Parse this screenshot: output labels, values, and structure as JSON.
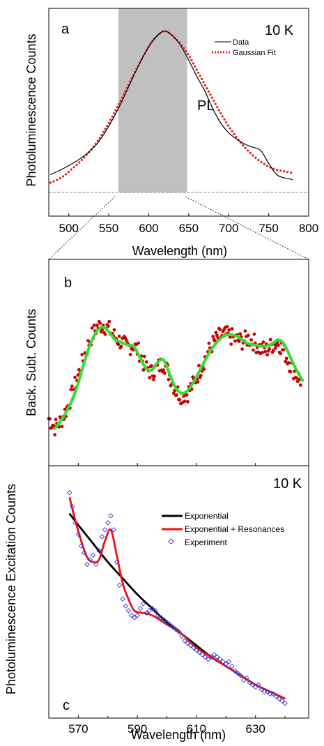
{
  "chart_data": [
    {
      "panel": "a",
      "type": "line",
      "ylabel": "Photoluminescence Counts",
      "xlabel": "Wavelength (nm)",
      "temperature_label": "10 K",
      "panel_label": "a",
      "peak_label": "PL",
      "xlim": [
        475,
        800
      ],
      "ylim": [
        0,
        1.05
      ],
      "xticks": [
        500,
        550,
        600,
        650,
        700,
        750,
        800
      ],
      "shaded_region": [
        562,
        648
      ],
      "baseline_y": 0.0,
      "legend": {
        "position": "top-right",
        "entries": [
          "Data",
          "Gaussian Fit"
        ]
      },
      "series": [
        {
          "name": "Data",
          "color": "#000000",
          "style": "solid",
          "x": [
            477,
            490,
            505,
            520,
            535,
            550,
            565,
            580,
            595,
            605,
            615,
            620,
            625,
            632,
            640,
            650,
            660,
            670,
            680,
            690,
            700,
            710,
            720,
            730,
            740,
            750,
            760,
            770,
            780
          ],
          "y": [
            0.11,
            0.14,
            0.18,
            0.23,
            0.3,
            0.41,
            0.55,
            0.71,
            0.86,
            0.94,
            0.99,
            1.0,
            0.99,
            0.96,
            0.91,
            0.82,
            0.72,
            0.63,
            0.52,
            0.43,
            0.37,
            0.33,
            0.3,
            0.28,
            0.26,
            0.18,
            0.11,
            0.09,
            0.08
          ]
        },
        {
          "name": "Gaussian Fit",
          "color": "#e8201a",
          "style": "dotted",
          "x": [
            477,
            490,
            505,
            520,
            535,
            550,
            565,
            580,
            595,
            605,
            615,
            620,
            625,
            632,
            640,
            650,
            660,
            670,
            680,
            690,
            700,
            710,
            720,
            730,
            740,
            750,
            760,
            770,
            780
          ],
          "y": [
            0.06,
            0.09,
            0.15,
            0.22,
            0.31,
            0.43,
            0.57,
            0.72,
            0.86,
            0.94,
            0.99,
            1.0,
            0.99,
            0.96,
            0.92,
            0.85,
            0.76,
            0.67,
            0.58,
            0.49,
            0.41,
            0.34,
            0.28,
            0.23,
            0.19,
            0.16,
            0.14,
            0.13,
            0.12
          ]
        }
      ]
    },
    {
      "panel": "b",
      "type": "scatter",
      "ylabel": "Back. Subt. Counts",
      "panel_label": "b",
      "xlim": [
        562,
        648
      ],
      "ylim": [
        0,
        1.0
      ],
      "series": [
        {
          "name": "",
          "color": "#cc0000",
          "style": "points",
          "x": [
            562,
            564,
            566,
            568,
            570,
            572,
            574,
            576,
            578,
            580,
            582,
            584,
            586,
            588,
            590,
            592,
            594,
            596,
            598,
            600,
            602,
            604,
            606,
            608,
            610,
            612,
            614,
            616,
            618,
            620,
            622,
            624,
            626,
            628,
            630,
            632,
            634,
            636,
            638,
            640,
            642,
            644,
            646
          ],
          "y": [
            0.12,
            0.05,
            0.1,
            0.2,
            0.33,
            0.48,
            0.63,
            0.76,
            0.84,
            0.86,
            0.82,
            0.76,
            0.72,
            0.68,
            0.7,
            0.64,
            0.52,
            0.48,
            0.52,
            0.56,
            0.46,
            0.34,
            0.3,
            0.32,
            0.4,
            0.5,
            0.61,
            0.7,
            0.76,
            0.78,
            0.77,
            0.74,
            0.73,
            0.75,
            0.72,
            0.67,
            0.66,
            0.7,
            0.72,
            0.64,
            0.54,
            0.46,
            0.4
          ]
        },
        {
          "name": "",
          "color": "#33dd33",
          "style": "solid",
          "x": [
            564,
            566,
            568,
            570,
            572,
            574,
            576,
            578,
            580,
            582,
            584,
            586,
            588,
            590,
            592,
            594,
            596,
            598,
            600,
            602,
            604,
            606,
            608,
            610,
            612,
            614,
            616,
            618,
            620,
            622,
            624,
            626,
            628,
            630,
            632,
            634,
            636,
            638,
            640,
            642,
            644,
            646
          ],
          "y": [
            0.04,
            0.1,
            0.18,
            0.28,
            0.42,
            0.58,
            0.72,
            0.81,
            0.84,
            0.8,
            0.74,
            0.72,
            0.7,
            0.69,
            0.61,
            0.52,
            0.5,
            0.56,
            0.58,
            0.47,
            0.36,
            0.32,
            0.34,
            0.41,
            0.5,
            0.59,
            0.67,
            0.73,
            0.77,
            0.78,
            0.77,
            0.74,
            0.71,
            0.7,
            0.69,
            0.69,
            0.71,
            0.74,
            0.7,
            0.6,
            0.5,
            0.42
          ]
        }
      ]
    },
    {
      "panel": "c",
      "type": "scatter",
      "ylabel": "Photoluminescence Excitation Counts",
      "xlabel": "Wavelength (nm)",
      "temperature_label": "10 K",
      "panel_label": "c",
      "xlim": [
        560,
        648
      ],
      "ylim": [
        0,
        1.0
      ],
      "xticks": [
        570,
        590,
        610,
        630
      ],
      "legend": {
        "position": "top-right",
        "entries": [
          "Exponential",
          "Exponential + Resonances",
          "Experiment"
        ]
      },
      "series": [
        {
          "name": "Exponential",
          "color": "#000000",
          "style": "solid",
          "x": [
            567,
            570,
            575,
            580,
            585,
            590,
            595,
            600,
            605,
            610,
            615,
            620,
            625,
            630,
            635,
            640
          ],
          "y": [
            0.86,
            0.81,
            0.73,
            0.65,
            0.58,
            0.51,
            0.45,
            0.39,
            0.34,
            0.29,
            0.24,
            0.2,
            0.16,
            0.12,
            0.09,
            0.06
          ]
        },
        {
          "name": "Exponential + Resonances",
          "color": "#ee1111",
          "style": "solid",
          "x": [
            567,
            569,
            571,
            573,
            575,
            577,
            579,
            581,
            583,
            585,
            587,
            589,
            592,
            595,
            600,
            605,
            610,
            615,
            620,
            625,
            630,
            635,
            640
          ],
          "y": [
            0.93,
            0.83,
            0.74,
            0.67,
            0.65,
            0.66,
            0.74,
            0.79,
            0.68,
            0.56,
            0.49,
            0.44,
            0.43,
            0.42,
            0.38,
            0.34,
            0.28,
            0.24,
            0.2,
            0.16,
            0.12,
            0.09,
            0.06
          ]
        },
        {
          "name": "Experiment",
          "color": "#3a36d6",
          "style": "points",
          "x": [
            567,
            568,
            569,
            570,
            571,
            572,
            573,
            574,
            575,
            576,
            577,
            578,
            579,
            580,
            581,
            582,
            583,
            584,
            585,
            586,
            587,
            588,
            589,
            590,
            591,
            592,
            593,
            594,
            595,
            596,
            597,
            598,
            599,
            600,
            601,
            602,
            603,
            604,
            605,
            606,
            607,
            608,
            609,
            610,
            611,
            612,
            613,
            614,
            615,
            616,
            617,
            618,
            619,
            620,
            621,
            622,
            623,
            624,
            625,
            626,
            627,
            628,
            629,
            630,
            631,
            632,
            633,
            634,
            635,
            636,
            637,
            638,
            639,
            640
          ],
          "y": [
            0.95,
            0.89,
            0.82,
            0.77,
            0.72,
            0.69,
            0.64,
            0.66,
            0.68,
            0.64,
            0.7,
            0.76,
            0.79,
            0.82,
            0.85,
            0.79,
            0.65,
            0.55,
            0.49,
            0.46,
            0.44,
            0.42,
            0.41,
            0.42,
            0.45,
            0.47,
            0.43,
            0.44,
            0.45,
            0.44,
            0.42,
            0.41,
            0.4,
            0.39,
            0.38,
            0.37,
            0.36,
            0.35,
            0.33,
            0.31,
            0.3,
            0.29,
            0.28,
            0.27,
            0.26,
            0.25,
            0.24,
            0.23,
            0.24,
            0.25,
            0.24,
            0.23,
            0.22,
            0.21,
            0.22,
            0.2,
            0.18,
            0.17,
            0.16,
            0.14,
            0.15,
            0.13,
            0.12,
            0.11,
            0.12,
            0.1,
            0.09,
            0.09,
            0.08,
            0.08,
            0.07,
            0.06,
            0.05,
            0.04
          ]
        }
      ]
    }
  ],
  "colors": {
    "shade": "#c0c0c0",
    "data_line": "#000000",
    "fit_dots": "#e8201a",
    "b_points": "#cc0000",
    "b_fit": "#33dd33",
    "exp_line": "#000000",
    "res_line": "#ee1111",
    "exp_points": "#3a36d6"
  }
}
